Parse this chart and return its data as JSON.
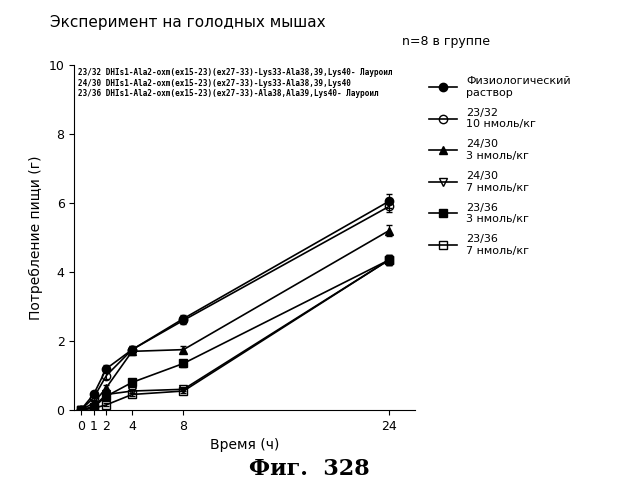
{
  "title": "Эксперимент на голодных мышах",
  "subtitle": "n=8 в группе",
  "xlabel": "Время (ч)",
  "ylabel": "Потребление пищи (г)",
  "caption": "Фиг.  328",
  "x_ticks": [
    0,
    1,
    2,
    4,
    8,
    24
  ],
  "xlim": [
    -0.5,
    26
  ],
  "ylim": [
    0,
    10
  ],
  "yticks": [
    0,
    2,
    4,
    6,
    8,
    10
  ],
  "annotation_lines": [
    "23/32 DHIs1-Ala2-oxm(ex15-23)(ex27-33)-Lys33-Ala38,39,Lys40- Лауроил",
    "24/30 DHIs1-Ala2-oxm(ex15-23)(ex27-33)-Lys33-Ala38,39,Lys40",
    "23/36 DHIs1-Ala2-oxm(ex15-23)(ex27-33)-Ala38,Ala39,Lys40- Лауроил"
  ],
  "series": [
    {
      "label": "Физиологический\nраствор",
      "x": [
        0,
        1,
        2,
        4,
        8,
        24
      ],
      "y": [
        0,
        0.45,
        1.2,
        1.75,
        2.65,
        6.05
      ],
      "yerr": [
        0,
        0.05,
        0.1,
        0.1,
        0.1,
        0.2
      ],
      "color": "black",
      "marker": "o",
      "fillstyle": "full",
      "linestyle": "-"
    },
    {
      "label": "23/32\n10 нмоль/кг",
      "x": [
        0,
        1,
        2,
        4,
        8,
        24
      ],
      "y": [
        0,
        0.35,
        1.0,
        1.75,
        2.6,
        5.9
      ],
      "yerr": [
        0,
        0.05,
        0.1,
        0.1,
        0.1,
        0.15
      ],
      "color": "black",
      "marker": "o",
      "fillstyle": "none",
      "linestyle": "-"
    },
    {
      "label": "24/30\n3 нмоль/кг",
      "x": [
        0,
        1,
        2,
        4,
        8,
        24
      ],
      "y": [
        0,
        0.2,
        0.65,
        1.7,
        1.75,
        5.2
      ],
      "yerr": [
        0,
        0.05,
        0.08,
        0.1,
        0.1,
        0.15
      ],
      "color": "black",
      "marker": "^",
      "fillstyle": "full",
      "linestyle": "-"
    },
    {
      "label": "24/30\n7 нмоль/кг",
      "x": [
        0,
        1,
        2,
        4,
        8,
        24
      ],
      "y": [
        0,
        0.1,
        0.45,
        0.55,
        0.6,
        4.35
      ],
      "yerr": [
        0,
        0.05,
        0.05,
        0.05,
        0.05,
        0.15
      ],
      "color": "black",
      "marker": "v",
      "fillstyle": "none",
      "linestyle": "-"
    },
    {
      "label": "23/36\n3 нмоль/кг",
      "x": [
        0,
        1,
        2,
        4,
        8,
        24
      ],
      "y": [
        0,
        0.08,
        0.4,
        0.8,
        1.35,
        4.35
      ],
      "yerr": [
        0,
        0.04,
        0.05,
        0.08,
        0.1,
        0.15
      ],
      "color": "black",
      "marker": "s",
      "fillstyle": "full",
      "linestyle": "-"
    },
    {
      "label": "23/36\n7 нмоль/кг",
      "x": [
        0,
        1,
        2,
        4,
        8,
        24
      ],
      "y": [
        0,
        0.05,
        0.15,
        0.45,
        0.55,
        4.35
      ],
      "yerr": [
        0,
        0.03,
        0.04,
        0.05,
        0.05,
        0.15
      ],
      "color": "black",
      "marker": "s",
      "fillstyle": "none",
      "linestyle": "-"
    }
  ]
}
